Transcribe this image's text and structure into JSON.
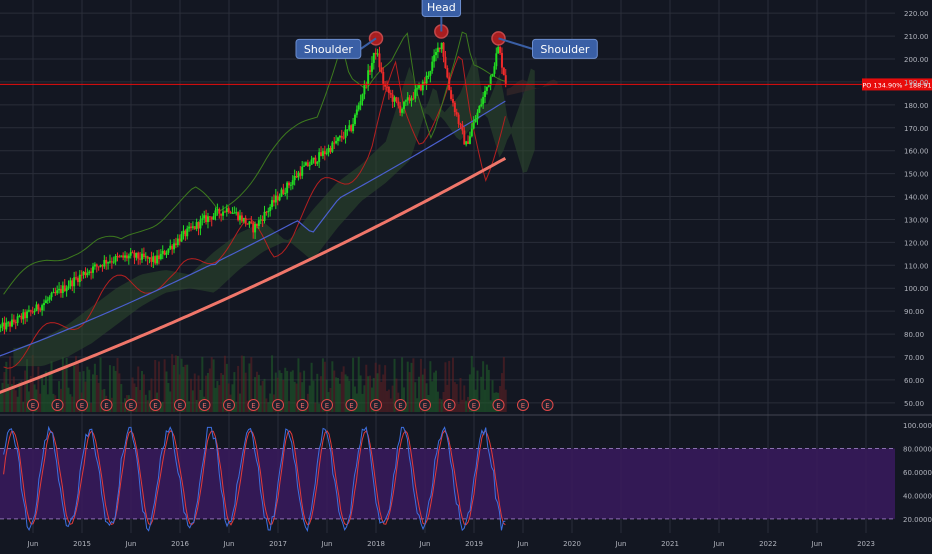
{
  "chart_data": {
    "type": "candlestick",
    "price_axis": {
      "ticks": [
        "220.00",
        "210.00",
        "200.00",
        "190.00",
        "180.00",
        "170.00",
        "160.00",
        "150.00",
        "140.00",
        "130.00",
        "120.00",
        "110.00",
        "100.00",
        "90.00",
        "80.00",
        "70.00",
        "60.00",
        "50.00"
      ],
      "ylim": [
        46,
        224
      ]
    },
    "oscillator_axis": {
      "ticks": [
        "100.0000",
        "80.0000",
        "60.0000",
        "40.0000",
        "20.0000"
      ],
      "ylim": [
        8,
        106
      ],
      "upper_band": 80,
      "lower_band": 20
    },
    "time_axis": [
      "Jun",
      "2015",
      "Jun",
      "2016",
      "Jun",
      "2017",
      "Jun",
      "2018",
      "Jun",
      "2019",
      "Jun",
      "2020",
      "Jun",
      "2021",
      "Jun",
      "2022",
      "Jun",
      "2023"
    ],
    "price_label": "PO 134.90% - 188.91",
    "price_line_value": 188.91,
    "annotations": [
      {
        "text": "Shoulder",
        "x": "2018-01",
        "y": 209
      },
      {
        "text": "Head",
        "x": "2018-09",
        "y": 212
      },
      {
        "text": "Shoulder",
        "x": "2019-04",
        "y": 209
      }
    ],
    "earnings_marker": "E",
    "earnings_dates": [
      "2014-07",
      "2014-10",
      "2015-01",
      "2015-04",
      "2015-07",
      "2015-10",
      "2016-01",
      "2016-04",
      "2016-07",
      "2016-10",
      "2017-01",
      "2017-04",
      "2017-07",
      "2017-10",
      "2018-01",
      "2018-04",
      "2018-07",
      "2018-10",
      "2019-01",
      "2019-04",
      "2019-07",
      "2019-10"
    ],
    "price_series": {
      "dates": [
        "2014-01",
        "2014-04",
        "2014-07",
        "2014-10",
        "2015-01",
        "2015-04",
        "2015-07",
        "2015-10",
        "2016-01",
        "2016-04",
        "2016-07",
        "2016-10",
        "2017-01",
        "2017-04",
        "2017-07",
        "2017-10",
        "2018-01",
        "2018-02",
        "2018-04",
        "2018-07",
        "2018-09",
        "2018-10",
        "2018-12",
        "2019-01",
        "2019-03",
        "2019-04",
        "2019-05"
      ],
      "close": [
        80,
        84,
        90,
        98,
        106,
        112,
        114,
        112,
        122,
        130,
        135,
        126,
        140,
        152,
        160,
        170,
        204,
        188,
        178,
        190,
        208,
        186,
        162,
        172,
        192,
        205,
        188
      ]
    },
    "ma_fast_end": 182,
    "ma_slow_end": 157,
    "colors": {
      "background": "#131722",
      "grid": "#2a2e39",
      "up_candle": "#22dd22",
      "down_candle": "#ee2a2a",
      "ma_fast": "#4a5fcf",
      "ma_slow": "#f0766a",
      "cloud": "#2e4a2e",
      "envelope_red": "#b52020",
      "envelope_green": "#3d7a1e",
      "oscillator_bg": "#3a1a5e",
      "k_line": "#3d6fe0",
      "d_line": "#e23a3a",
      "price_label_bg": "#e80c0c",
      "callout_bg": "#3a5fa5"
    }
  }
}
